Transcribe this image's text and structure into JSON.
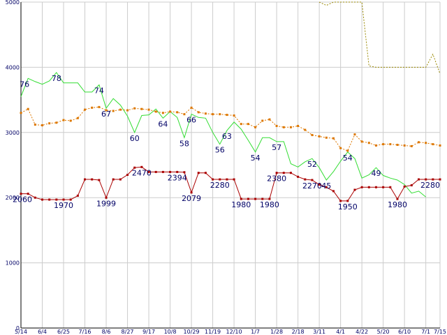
{
  "chart_data": {
    "type": "line",
    "title": "",
    "xlabel": "",
    "ylabel": "",
    "ylim": [
      0,
      5000
    ],
    "grid": true,
    "yticks": [
      0,
      1000,
      2000,
      3000,
      4000,
      5000
    ],
    "xticks": [
      {
        "i": 0,
        "label": "5/14"
      },
      {
        "i": 3,
        "label": "6/4"
      },
      {
        "i": 6,
        "label": "6/25"
      },
      {
        "i": 9,
        "label": "7/16"
      },
      {
        "i": 12,
        "label": "8/6"
      },
      {
        "i": 15,
        "label": "8/27"
      },
      {
        "i": 18,
        "label": "9/17"
      },
      {
        "i": 21,
        "label": "10/8"
      },
      {
        "i": 24,
        "label": "10/29"
      },
      {
        "i": 27,
        "label": "11/19"
      },
      {
        "i": 30,
        "label": "12/10"
      },
      {
        "i": 33,
        "label": "1/7"
      },
      {
        "i": 36,
        "label": "1/28"
      },
      {
        "i": 39,
        "label": "2/18"
      },
      {
        "i": 42,
        "label": "3/11"
      },
      {
        "i": 45,
        "label": "4/1"
      },
      {
        "i": 48,
        "label": "4/22"
      },
      {
        "i": 51,
        "label": "5/20"
      },
      {
        "i": 54,
        "label": "6/10"
      },
      {
        "i": 57,
        "label": "7/1"
      },
      {
        "i": 59,
        "label": "7/15"
      }
    ],
    "series": [
      {
        "name": "",
        "color": "#33dd33",
        "style": "solid",
        "marker": false,
        "values": [
          3550,
          3830,
          3780,
          3740,
          3790,
          3920,
          3760,
          3760,
          3760,
          3620,
          3620,
          3730,
          3370,
          3520,
          3420,
          3250,
          3000,
          3260,
          3270,
          3360,
          3220,
          3320,
          3230,
          2920,
          3280,
          3230,
          3220,
          3000,
          2820,
          3030,
          3160,
          3050,
          2880,
          2700,
          2920,
          2920,
          2860,
          2860,
          2520,
          2470,
          2550,
          2600,
          2460,
          2270,
          2400,
          2560,
          2700,
          2600,
          2300,
          2350,
          2460,
          2340,
          2300,
          2270,
          2200,
          2070,
          2100,
          2010
        ],
        "x_start": 0
      },
      {
        "name": "",
        "color": "#dd7700",
        "style": "dotted",
        "marker": true,
        "values": [
          3300,
          3360,
          3120,
          3110,
          3140,
          3150,
          3190,
          3180,
          3220,
          3350,
          3380,
          3390,
          3340,
          3330,
          3350,
          3340,
          3370,
          3360,
          3350,
          3320,
          3300,
          3320,
          3310,
          3280,
          3380,
          3310,
          3290,
          3280,
          3280,
          3270,
          3260,
          3130,
          3130,
          3080,
          3180,
          3200,
          3100,
          3080,
          3080,
          3100,
          3040,
          2960,
          2940,
          2920,
          2910,
          2760,
          2720,
          2970,
          2860,
          2840,
          2800,
          2820,
          2820,
          2810,
          2800,
          2790,
          2850,
          2840,
          2820,
          2800
        ],
        "x_start": 0
      },
      {
        "name": "",
        "color": "#aa0000",
        "style": "solid",
        "marker": true,
        "values": [
          2060,
          2060,
          2000,
          1970,
          1970,
          1970,
          1970,
          1970,
          2030,
          2280,
          2280,
          2270,
          1999,
          2280,
          2280,
          2350,
          2460,
          2470,
          2394,
          2394,
          2394,
          2394,
          2394,
          2390,
          2079,
          2380,
          2380,
          2280,
          2280,
          2280,
          2280,
          1980,
          1980,
          1980,
          1980,
          1980,
          2380,
          2380,
          2380,
          2320,
          2280,
          2270,
          2200,
          2160,
          2100,
          1950,
          1950,
          2120,
          2160,
          2160,
          2160,
          2160,
          2160,
          1980,
          2170,
          2190,
          2280,
          2280,
          2280,
          2280
        ],
        "x_start": 0
      },
      {
        "name": "",
        "color": "#998800",
        "style": "dotted",
        "marker": false,
        "values": [
          5000,
          4950,
          5000,
          5000,
          5000,
          5000,
          5000,
          4020,
          4000,
          4000,
          4000,
          4000,
          4000,
          4000,
          4000,
          4000,
          4200,
          3900
        ],
        "x_start": 42
      }
    ],
    "point_labels": [
      {
        "series": 0,
        "i": 1,
        "text": "76"
      },
      {
        "series": 0,
        "i": 5,
        "text": "78"
      },
      {
        "series": 0,
        "i": 11,
        "text": "74"
      },
      {
        "series": 0,
        "i": 12,
        "text": "67"
      },
      {
        "series": 0,
        "i": 16,
        "text": "60"
      },
      {
        "series": 0,
        "i": 20,
        "text": "64"
      },
      {
        "series": 0,
        "i": 23,
        "text": "58"
      },
      {
        "series": 0,
        "i": 24,
        "text": "66"
      },
      {
        "series": 0,
        "i": 28,
        "text": "56"
      },
      {
        "series": 0,
        "i": 29,
        "text": "63"
      },
      {
        "series": 0,
        "i": 33,
        "text": "54"
      },
      {
        "series": 0,
        "i": 36,
        "text": "57"
      },
      {
        "series": 0,
        "i": 41,
        "text": "52"
      },
      {
        "series": 0,
        "i": 43,
        "text": "45"
      },
      {
        "series": 0,
        "i": 46,
        "text": "54"
      },
      {
        "series": 0,
        "i": 50,
        "text": "49"
      },
      {
        "series": 2,
        "i": 0,
        "text": "2060"
      },
      {
        "series": 2,
        "i": 6,
        "text": "1970"
      },
      {
        "series": 2,
        "i": 12,
        "text": "1999"
      },
      {
        "series": 2,
        "i": 17,
        "text": "2470"
      },
      {
        "series": 2,
        "i": 22,
        "text": "2394"
      },
      {
        "series": 2,
        "i": 24,
        "text": "2079"
      },
      {
        "series": 2,
        "i": 28,
        "text": "2280"
      },
      {
        "series": 2,
        "i": 31,
        "text": "1980"
      },
      {
        "series": 2,
        "i": 35,
        "text": "1980"
      },
      {
        "series": 2,
        "i": 36,
        "text": "2380"
      },
      {
        "series": 2,
        "i": 41,
        "text": "2270"
      },
      {
        "series": 2,
        "i": 46,
        "text": "1950"
      },
      {
        "series": 2,
        "i": 53,
        "text": "1980"
      },
      {
        "series": 2,
        "i": 59,
        "text": "2280"
      }
    ]
  }
}
